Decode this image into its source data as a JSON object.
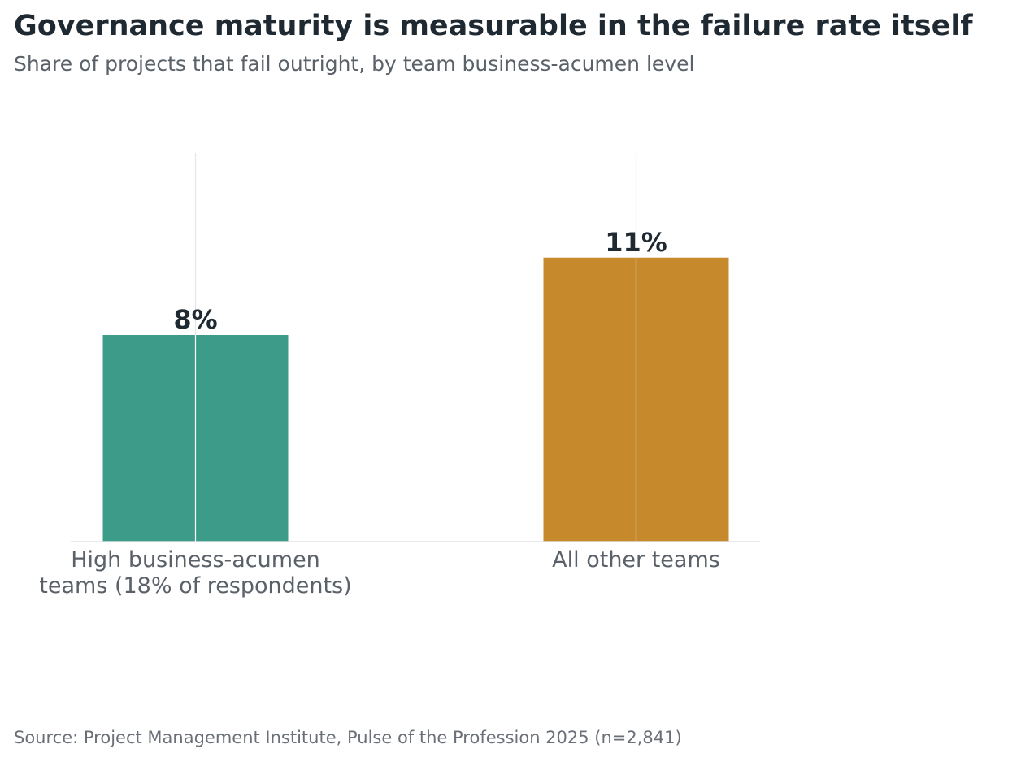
{
  "chart_data": {
    "type": "bar",
    "title": "Governance maturity is measurable in the failure rate itself",
    "subtitle": "Share of projects that fail outright, by team business-acumen level",
    "categories": [
      [
        "High business-acumen",
        "teams (18% of respondents)"
      ],
      [
        "All other teams"
      ]
    ],
    "values": [
      8,
      11
    ],
    "value_labels": [
      "8%",
      "11%"
    ],
    "unit": "%",
    "ylim": [
      0,
      15
    ],
    "colors": [
      "#3d9b89",
      "#c6892c"
    ],
    "grid": "vertical-at-categories",
    "legend": "none",
    "source": "Source: Project Management Institute, Pulse of the Profession 2025 (n=2,841)"
  }
}
